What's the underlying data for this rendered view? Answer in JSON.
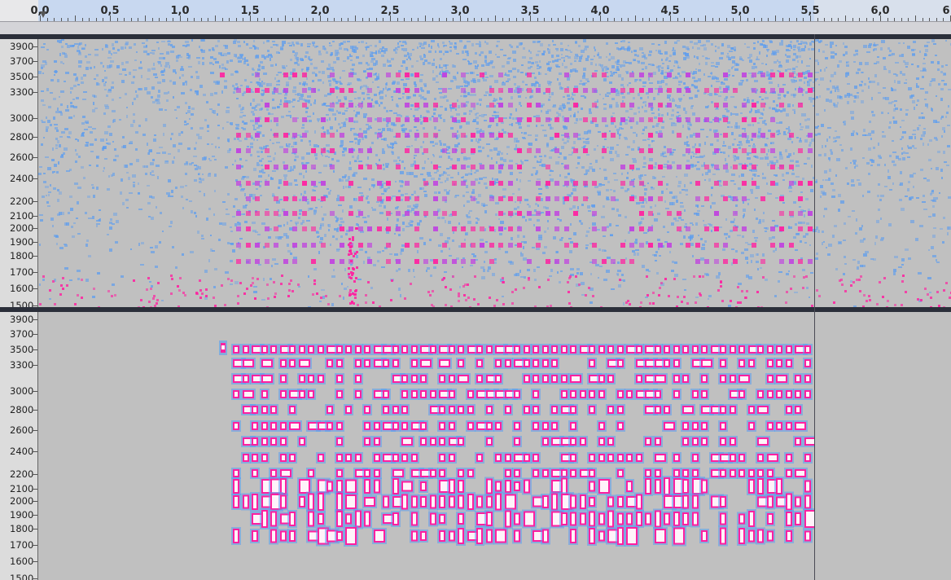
{
  "ruler": {
    "labels": [
      "0,0",
      "0,5",
      "1,0",
      "1,5",
      "2,0",
      "2,5",
      "3,0",
      "3,5",
      "4,0",
      "4,5",
      "5,0",
      "5,5",
      "6,0",
      "6"
    ]
  },
  "tracks": [
    {
      "name": "spectrogram-track-original",
      "freq_labels": [
        "3900",
        "3700",
        "3500",
        "3300",
        "3000",
        "2800",
        "2600",
        "2400",
        "2200",
        "2100",
        "2000",
        "1900",
        "1800",
        "1700",
        "1600",
        "1500"
      ]
    },
    {
      "name": "spectrogram-track-processed",
      "freq_labels": [
        "3900",
        "3700",
        "3500",
        "3300",
        "3000",
        "2800",
        "2600",
        "2400",
        "2200",
        "2100",
        "2000",
        "1900",
        "1800",
        "1700",
        "1600",
        "1500"
      ]
    }
  ],
  "colors": {
    "background": "#c0c0c0",
    "noise": "#5a9cf0",
    "tone_low": "#c040e0",
    "tone_high": "#ff20a0",
    "peak": "#ffffff"
  }
}
